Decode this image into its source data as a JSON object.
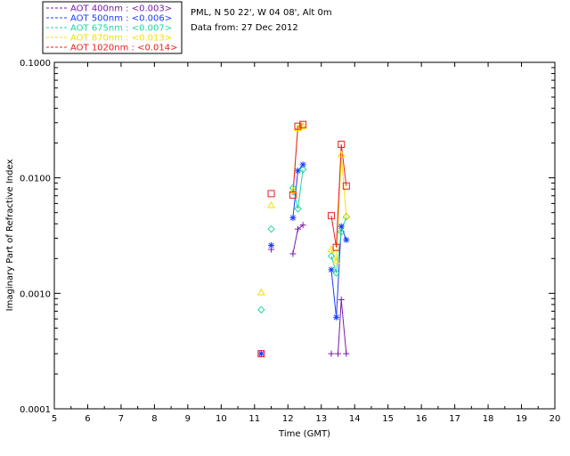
{
  "chart_data": {
    "type": "scatter",
    "title": "",
    "xlabel": "Time (GMT)",
    "ylabel": "Imaginary Part of Refractive Index",
    "xlim": [
      5,
      20
    ],
    "ylim": [
      0.0001,
      0.1
    ],
    "y_scale": "log",
    "x_ticks": [
      5,
      6,
      7,
      8,
      9,
      10,
      11,
      12,
      13,
      14,
      15,
      16,
      17,
      18,
      19,
      20
    ],
    "y_ticks": [
      {
        "value": 0.0001,
        "label": "0.0001"
      },
      {
        "value": 0.001,
        "label": "0.0010"
      },
      {
        "value": 0.01,
        "label": "0.0100"
      },
      {
        "value": 0.1,
        "label": "0.1000"
      }
    ],
    "grid": false,
    "legend_position": "top-left-outside",
    "info_lines": [
      "PML, N 50 22', W 04 08', Alt 0m",
      "Data from: 27 Dec 2012"
    ],
    "series": [
      {
        "name": "AOT  400nm : <0.003>",
        "color": "#7a1aa8",
        "marker": "plus",
        "points": [
          [
            11.2,
            0.0003
          ],
          [
            11.5,
            0.0024
          ],
          [
            12.15,
            0.0022
          ],
          [
            12.3,
            0.0036
          ],
          [
            12.45,
            0.0039
          ],
          [
            13.3,
            0.0003
          ],
          [
            13.5,
            0.0003
          ],
          [
            13.6,
            0.00088
          ],
          [
            13.75,
            0.0003
          ]
        ],
        "segments": [
          [
            [
              12.15,
              0.0022
            ],
            [
              12.3,
              0.0036
            ],
            [
              12.45,
              0.0039
            ]
          ],
          [
            [
              13.5,
              0.0003
            ],
            [
              13.6,
              0.00088
            ],
            [
              13.75,
              0.0003
            ]
          ]
        ]
      },
      {
        "name": "AOT  500nm : <0.006>",
        "color": "#1a3cff",
        "marker": "asterisk",
        "points": [
          [
            11.2,
            0.0003
          ],
          [
            11.5,
            0.0026
          ],
          [
            12.15,
            0.0045
          ],
          [
            12.3,
            0.0115
          ],
          [
            12.45,
            0.013
          ],
          [
            13.3,
            0.0016
          ],
          [
            13.45,
            0.00062
          ],
          [
            13.6,
            0.0038
          ],
          [
            13.75,
            0.0029
          ]
        ],
        "segments": [
          [
            [
              12.15,
              0.0045
            ],
            [
              12.3,
              0.0115
            ],
            [
              12.45,
              0.013
            ]
          ],
          [
            [
              13.3,
              0.0016
            ],
            [
              13.45,
              0.00062
            ],
            [
              13.6,
              0.0038
            ],
            [
              13.75,
              0.0029
            ]
          ]
        ]
      },
      {
        "name": "AOT  675nm : <0.007>",
        "color": "#1fd6a0",
        "marker": "diamond",
        "points": [
          [
            11.2,
            0.00072
          ],
          [
            11.5,
            0.0036
          ],
          [
            12.15,
            0.0082
          ],
          [
            12.3,
            0.0054
          ],
          [
            12.45,
            0.0118
          ],
          [
            13.3,
            0.0021
          ],
          [
            13.45,
            0.0015
          ],
          [
            13.6,
            0.0034
          ],
          [
            13.75,
            0.0046
          ]
        ],
        "segments": [
          [
            [
              12.15,
              0.0082
            ],
            [
              12.3,
              0.0054
            ],
            [
              12.45,
              0.0118
            ]
          ],
          [
            [
              13.3,
              0.0021
            ],
            [
              13.45,
              0.0015
            ],
            [
              13.6,
              0.0034
            ],
            [
              13.75,
              0.0046
            ]
          ]
        ]
      },
      {
        "name": "AOT  870nm : <0.013>",
        "color": "#f5e000",
        "marker": "triangle",
        "points": [
          [
            11.2,
            0.00102
          ],
          [
            11.5,
            0.0058
          ],
          [
            12.15,
            0.0078
          ],
          [
            12.3,
            0.027
          ],
          [
            12.45,
            0.028
          ],
          [
            13.3,
            0.0024
          ],
          [
            13.45,
            0.0019
          ],
          [
            13.6,
            0.016
          ],
          [
            13.75,
            0.0047
          ]
        ],
        "segments": [
          [
            [
              12.15,
              0.0078
            ],
            [
              12.3,
              0.027
            ],
            [
              12.45,
              0.028
            ]
          ],
          [
            [
              13.3,
              0.0024
            ],
            [
              13.45,
              0.0019
            ],
            [
              13.6,
              0.016
            ],
            [
              13.75,
              0.0047
            ]
          ]
        ]
      },
      {
        "name": "AOT 1020nm : <0.014>",
        "color": "#e82020",
        "marker": "square",
        "points": [
          [
            11.2,
            0.0003
          ],
          [
            11.5,
            0.0073
          ],
          [
            12.15,
            0.0071
          ],
          [
            12.3,
            0.028
          ],
          [
            12.45,
            0.029
          ],
          [
            13.3,
            0.0047
          ],
          [
            13.45,
            0.0025
          ],
          [
            13.6,
            0.0195
          ],
          [
            13.75,
            0.0085
          ]
        ],
        "segments": [
          [
            [
              12.15,
              0.0071
            ],
            [
              12.3,
              0.028
            ],
            [
              12.45,
              0.029
            ]
          ],
          [
            [
              13.3,
              0.0047
            ],
            [
              13.45,
              0.0025
            ],
            [
              13.6,
              0.0195
            ],
            [
              13.75,
              0.0085
            ]
          ]
        ]
      }
    ]
  }
}
